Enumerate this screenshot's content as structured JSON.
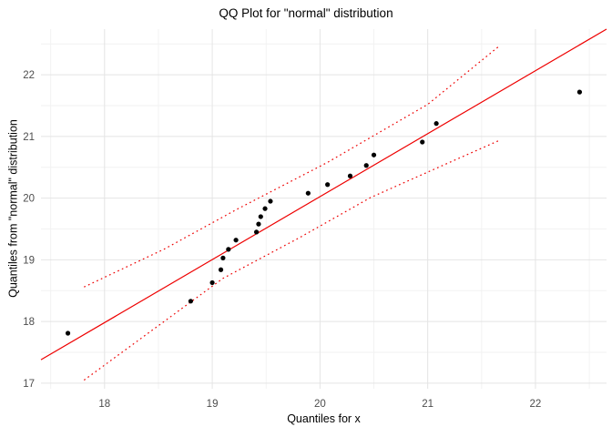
{
  "chart_data": {
    "type": "scatter",
    "title": "QQ Plot for \"normal\" distribution",
    "xlabel": "Quantiles for x",
    "ylabel": "Quantiles from \"normal\" distribution",
    "xlim": [
      17.41,
      22.66
    ],
    "ylim": [
      16.91,
      22.74
    ],
    "x_ticks": [
      18,
      19,
      20,
      21,
      22
    ],
    "y_ticks": [
      17,
      18,
      19,
      20,
      21,
      22
    ],
    "x_minor_ticks": [
      17.5,
      18.5,
      19.5,
      20.5,
      21.5,
      22.5
    ],
    "y_minor_ticks": [
      17.5,
      18.5,
      19.5,
      20.5,
      21.5,
      22.5
    ],
    "grid": true,
    "legend": false,
    "points": [
      [
        17.66,
        17.81
      ],
      [
        18.8,
        18.33
      ],
      [
        19.0,
        18.63
      ],
      [
        19.08,
        18.84
      ],
      [
        19.1,
        19.03
      ],
      [
        19.15,
        19.17
      ],
      [
        19.22,
        19.32
      ],
      [
        19.41,
        19.45
      ],
      [
        19.43,
        19.58
      ],
      [
        19.45,
        19.7
      ],
      [
        19.49,
        19.83
      ],
      [
        19.54,
        19.95
      ],
      [
        19.89,
        20.08
      ],
      [
        20.07,
        20.22
      ],
      [
        20.28,
        20.36
      ],
      [
        20.43,
        20.53
      ],
      [
        20.5,
        20.7
      ],
      [
        20.95,
        20.91
      ],
      [
        21.08,
        21.21
      ],
      [
        22.41,
        21.72
      ]
    ],
    "reference_line": {
      "style": "solid",
      "x1": 17.41,
      "y1": 17.38,
      "x2": 22.66,
      "y2": 22.74
    },
    "confidence_band": {
      "style": "dotted",
      "upper": [
        [
          17.81,
          18.56
        ],
        [
          18.55,
          19.17
        ],
        [
          19.23,
          19.82
        ],
        [
          20.07,
          20.58
        ],
        [
          21.0,
          21.52
        ],
        [
          21.66,
          22.46
        ]
      ],
      "lower": [
        [
          17.81,
          17.05
        ],
        [
          19.1,
          18.7
        ],
        [
          19.8,
          19.35
        ],
        [
          20.47,
          20.01
        ],
        [
          21.1,
          20.5
        ],
        [
          21.67,
          20.94
        ]
      ]
    },
    "colors": {
      "points": "#000000",
      "line": "#ee0000",
      "band": "#ee0000",
      "grid_major": "#e4e4e4",
      "grid_minor": "#f2f2f2",
      "tick_label": "#4d4d4d",
      "title": "#000000",
      "background": "#ffffff"
    }
  }
}
